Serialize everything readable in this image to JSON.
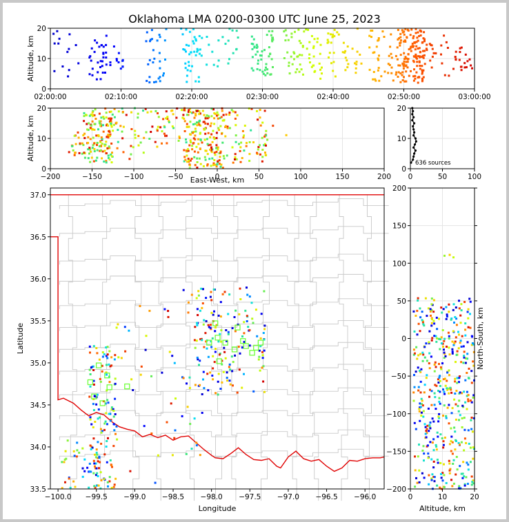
{
  "title": "Oklahoma LMA 0200-0300 UTC June 25, 2023",
  "chart_data": [
    {
      "id": "time-height",
      "type": "scatter",
      "xlabel": "",
      "ylabel": "Altitude, km",
      "xticks": [
        "02:00:00",
        "02:10:00",
        "02:20:00",
        "02:30:00",
        "02:40:00",
        "02:50:00",
        "03:00:00"
      ],
      "xlim": [
        0,
        60
      ],
      "xunit": "minutes after 02:00 UTC",
      "ylim": [
        0,
        20
      ],
      "yticks": [
        0,
        10,
        20
      ],
      "grid": true,
      "clusters": [
        {
          "tmin": 0,
          "tmax": 4,
          "altmin": 4,
          "altmax": 20,
          "n": 14
        },
        {
          "tmin": 5.5,
          "tmax": 8,
          "altmin": 2,
          "altmax": 20,
          "n": 32
        },
        {
          "tmin": 8,
          "tmax": 10.5,
          "altmin": 6,
          "altmax": 14,
          "n": 12
        },
        {
          "tmin": 13.5,
          "tmax": 16.5,
          "altmin": 2,
          "altmax": 20,
          "n": 30
        },
        {
          "tmin": 18.5,
          "tmax": 21.5,
          "altmin": 2,
          "altmax": 20,
          "n": 40
        },
        {
          "tmin": 22,
          "tmax": 27,
          "altmin": 6,
          "altmax": 20,
          "n": 20
        },
        {
          "tmin": 28.5,
          "tmax": 31.5,
          "altmin": 4,
          "altmax": 20,
          "n": 50
        },
        {
          "tmin": 33,
          "tmax": 38.5,
          "altmin": 3,
          "altmax": 20,
          "n": 60
        },
        {
          "tmin": 39,
          "tmax": 44,
          "altmin": 3,
          "altmax": 20,
          "n": 40
        },
        {
          "tmin": 45,
          "tmax": 49,
          "altmin": 2,
          "altmax": 20,
          "n": 40
        },
        {
          "tmin": 49,
          "tmax": 53,
          "altmin": 2,
          "altmax": 20,
          "n": 140
        },
        {
          "tmin": 53,
          "tmax": 56.5,
          "altmin": 4,
          "altmax": 18,
          "n": 20
        },
        {
          "tmin": 56.5,
          "tmax": 60,
          "altmin": 6,
          "altmax": 14,
          "n": 20
        }
      ]
    },
    {
      "id": "east-west-altitude",
      "type": "scatter",
      "xlabel": "East-West, km",
      "ylabel": "Altitude, km",
      "xlim": [
        -200,
        200
      ],
      "xticks": [
        -200,
        -150,
        -100,
        -50,
        0,
        50,
        100,
        150,
        200
      ],
      "ylim": [
        0,
        20
      ],
      "yticks": [
        0,
        10,
        20
      ],
      "grid": true,
      "clusters": [
        {
          "xmin": -178,
          "xmax": -160,
          "altmin": 4,
          "altmax": 12,
          "n": 20
        },
        {
          "xmin": -160,
          "xmax": -125,
          "altmin": 2,
          "altmax": 20,
          "n": 150
        },
        {
          "xmin": -125,
          "xmax": -80,
          "altmin": 3,
          "altmax": 20,
          "n": 40
        },
        {
          "xmin": -80,
          "xmax": -40,
          "altmin": 6,
          "altmax": 20,
          "n": 40
        },
        {
          "xmin": -40,
          "xmax": 10,
          "altmin": 0,
          "altmax": 20,
          "n": 200
        },
        {
          "xmin": 10,
          "xmax": 60,
          "altmin": 2,
          "altmax": 20,
          "n": 70
        },
        {
          "xmin": 60,
          "xmax": 100,
          "altmin": 5,
          "altmax": 16,
          "n": 3
        }
      ]
    },
    {
      "id": "altitude-histogram",
      "type": "line",
      "xlim": [
        0,
        100
      ],
      "xticks": [
        0,
        50,
        100
      ],
      "ylim": [
        0,
        20
      ],
      "yticks": [
        0,
        10,
        20
      ],
      "annotation": "636 sources",
      "profile": {
        "alt": [
          2,
          3,
          4,
          5,
          6,
          7,
          8,
          9,
          10,
          11,
          12,
          13,
          14,
          15,
          16,
          17,
          18,
          19,
          20
        ],
        "count": [
          1,
          4,
          5,
          6,
          8,
          5,
          7,
          9,
          8,
          5,
          6,
          5,
          4,
          6,
          3,
          5,
          3,
          4,
          3
        ]
      }
    },
    {
      "id": "plan-view-map",
      "type": "scatter",
      "xlabel": "Longitude",
      "ylabel": "Latitude",
      "xlim": [
        -100.1,
        -95.75
      ],
      "xticks": [
        -100.0,
        -99.5,
        -99.0,
        -98.5,
        -98.0,
        -97.5,
        -97.0,
        -96.5,
        -96.0
      ],
      "ylim": [
        33.5,
        37.08
      ],
      "yticks": [
        33.5,
        34.0,
        34.5,
        35.0,
        35.5,
        36.0,
        36.5,
        37.0
      ],
      "stations": [
        {
          "lon": -99.47,
          "lat": 34.97
        },
        {
          "lon": -99.58,
          "lat": 34.77
        },
        {
          "lon": -99.36,
          "lat": 34.85
        },
        {
          "lon": -99.33,
          "lat": 34.71
        },
        {
          "lon": -99.53,
          "lat": 34.6
        },
        {
          "lon": -99.42,
          "lat": 34.52
        },
        {
          "lon": -99.1,
          "lat": 34.72
        },
        {
          "lon": -98.03,
          "lat": 35.24
        },
        {
          "lon": -97.95,
          "lat": 35.47
        },
        {
          "lon": -97.92,
          "lat": 35.3
        },
        {
          "lon": -97.82,
          "lat": 35.24
        },
        {
          "lon": -97.9,
          "lat": 35.02
        },
        {
          "lon": -97.66,
          "lat": 35.42
        },
        {
          "lon": -97.59,
          "lat": 35.26
        },
        {
          "lon": -97.7,
          "lat": 35.16
        },
        {
          "lon": -97.55,
          "lat": 35.2
        },
        {
          "lon": -97.47,
          "lat": 35.12
        },
        {
          "lon": -97.42,
          "lat": 35.18
        },
        {
          "lon": -97.36,
          "lat": 35.24
        }
      ],
      "clusters": [
        {
          "lonmin": -99.6,
          "lonmax": -99.25,
          "latmin": 33.5,
          "latmax": 35.2,
          "n": 150
        },
        {
          "lonmin": -99.95,
          "lonmax": -99.6,
          "latmin": 33.5,
          "latmax": 34.1,
          "n": 25
        },
        {
          "lonmin": -99.25,
          "lonmax": -98.6,
          "latmin": 33.5,
          "latmax": 35.9,
          "n": 25
        },
        {
          "lonmin": -98.6,
          "lonmax": -98.1,
          "latmin": 33.9,
          "latmax": 35.9,
          "n": 40
        },
        {
          "lonmin": -98.2,
          "lonmax": -97.3,
          "latmin": 34.6,
          "latmax": 35.9,
          "n": 160
        }
      ]
    },
    {
      "id": "altitude-north-south",
      "type": "scatter",
      "xlabel": "Altitude, km",
      "ylabel": "North-South, km",
      "xlim": [
        0,
        20
      ],
      "xticks": [
        0,
        10,
        20
      ],
      "ylim": [
        -200,
        200
      ],
      "yticks": [
        -200,
        -150,
        -100,
        -50,
        0,
        50,
        100,
        150,
        200
      ],
      "grid": true,
      "clusters": [
        {
          "altmin": 1,
          "altmax": 20,
          "nsmin": -200,
          "nsmax": -80,
          "n": 200
        },
        {
          "altmin": 1,
          "altmax": 20,
          "nsmin": -80,
          "nsmax": 55,
          "n": 250
        },
        {
          "altmin": 10,
          "altmax": 15,
          "nsmin": 55,
          "nsmax": 135,
          "n": 3
        }
      ]
    }
  ]
}
